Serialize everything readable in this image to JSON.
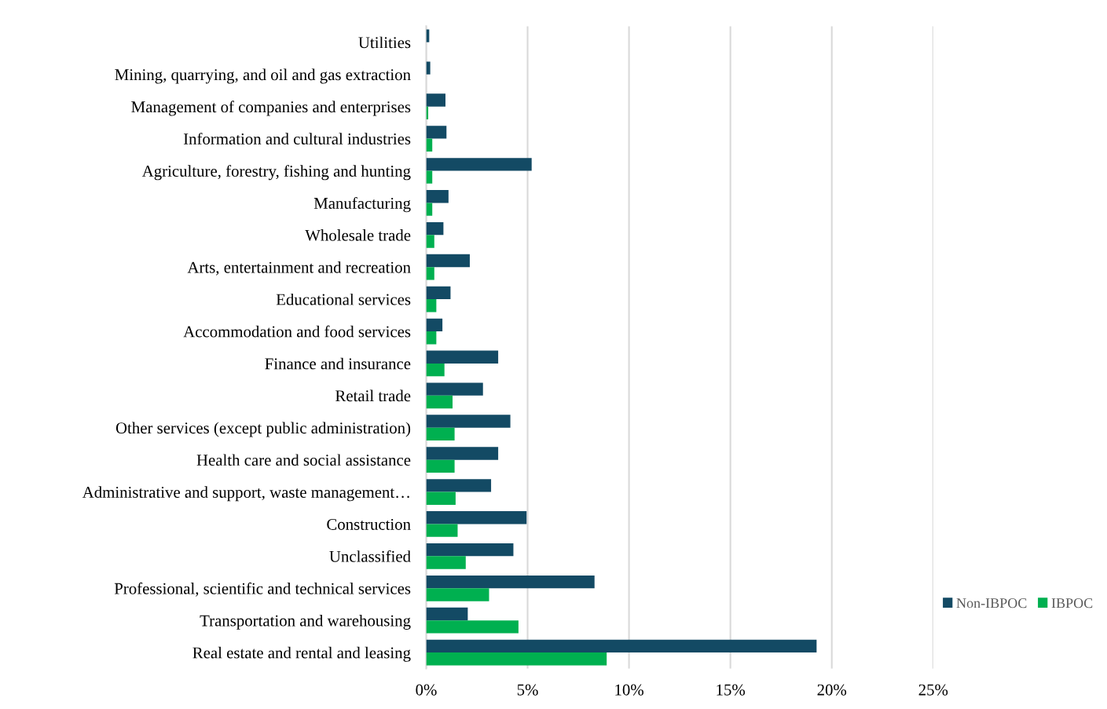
{
  "chart_data": {
    "type": "bar",
    "orientation": "horizontal",
    "categories": [
      "Utilities",
      "Mining, quarrying, and oil and gas extraction",
      "Management of companies and enterprises",
      "Information and cultural industries",
      "Agriculture, forestry, fishing and hunting",
      "Manufacturing",
      "Wholesale trade",
      "Arts, entertainment and recreation",
      "Educational services",
      "Accommodation and food services",
      "Finance and insurance",
      "Retail trade",
      "Other services (except public administration)",
      "Health care and social assistance",
      "Administrative and support, waste management…",
      "Construction",
      "Unclassified",
      "Professional, scientific and technical services",
      "Transportation and warehousing",
      "Real estate and rental and leasing"
    ],
    "series": [
      {
        "name": "Non-IBPOC",
        "color": "#134a64",
        "values": [
          0.15,
          0.2,
          0.95,
          1.0,
          5.2,
          1.1,
          0.85,
          2.15,
          1.2,
          0.8,
          3.55,
          2.8,
          4.15,
          3.55,
          3.2,
          4.95,
          4.3,
          8.3,
          2.05,
          19.25
        ]
      },
      {
        "name": "IBPOC",
        "color": "#00b050",
        "values": [
          null,
          null,
          0.1,
          0.3,
          0.3,
          0.3,
          0.4,
          0.4,
          0.5,
          0.5,
          0.9,
          1.3,
          1.4,
          1.4,
          1.45,
          1.55,
          1.95,
          3.1,
          4.55,
          8.9
        ]
      }
    ],
    "xlim": [
      0,
      25
    ],
    "xticks": [
      {
        "value": 0,
        "label": "0%"
      },
      {
        "value": 5,
        "label": "5%"
      },
      {
        "value": 10,
        "label": "10%"
      },
      {
        "value": 15,
        "label": "15%"
      },
      {
        "value": 20,
        "label": "20%"
      },
      {
        "value": 25,
        "label": "25%"
      }
    ],
    "grid": "x",
    "legend": "right"
  }
}
